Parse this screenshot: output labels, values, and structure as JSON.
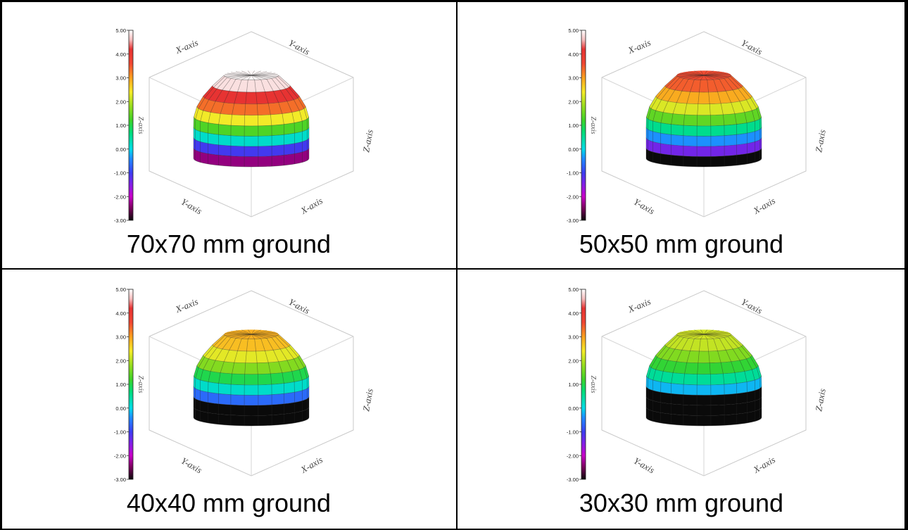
{
  "chart_data": [
    {
      "type": "surface3d",
      "caption": "70x70 mm ground",
      "colorbar": {
        "ticks": [
          "5.00",
          "4.00",
          "3.00",
          "2.00",
          "1.00",
          "0.00",
          "-1.00",
          "-2.00",
          "-3.00"
        ],
        "range": [
          -3,
          5
        ],
        "label": "Z-axis"
      },
      "axes": {
        "x_top": "X-axis",
        "y_top": "Y-axis",
        "z_right": "Z-axis",
        "y_bottom": "Y-axis",
        "x_bottom": "X-axis"
      },
      "dome": {
        "top_value": 5.0,
        "bottom_value": -3.0,
        "dark_bottom_fraction": 0.04
      }
    },
    {
      "type": "surface3d",
      "caption": "50x50 mm ground",
      "colorbar": {
        "ticks": [
          "5.00",
          "4.00",
          "3.00",
          "2.00",
          "1.00",
          "0.00",
          "-1.00",
          "-2.00",
          "-3.00"
        ],
        "range": [
          -3,
          5
        ],
        "label": "Z-axis"
      },
      "axes": {
        "x_top": "X-axis",
        "y_top": "Y-axis",
        "z_right": "Z-axis",
        "y_bottom": "Y-axis",
        "x_bottom": "X-axis"
      },
      "dome": {
        "top_value": 3.6,
        "bottom_value": -3.0,
        "dark_bottom_fraction": 0.08
      }
    },
    {
      "type": "surface3d",
      "caption": "40x40 mm ground",
      "colorbar": {
        "ticks": [
          "5.00",
          "4.00",
          "3.00",
          "2.00",
          "1.00",
          "0.00",
          "-1.00",
          "-2.00",
          "-3.00"
        ],
        "range": [
          -3,
          5
        ],
        "label": "Z-axis"
      },
      "axes": {
        "x_top": "X-axis",
        "y_top": "Y-axis",
        "z_right": "Z-axis",
        "y_bottom": "Y-axis",
        "x_bottom": "X-axis"
      },
      "dome": {
        "top_value": 2.9,
        "bottom_value": -3.0,
        "dark_bottom_fraction": 0.22
      }
    },
    {
      "type": "surface3d",
      "caption": "30x30 mm ground",
      "colorbar": {
        "ticks": [
          "5.00",
          "4.00",
          "3.00",
          "2.00",
          "1.00",
          "0.00",
          "-1.00",
          "-2.00",
          "-3.00"
        ],
        "range": [
          -3,
          5
        ],
        "label": "Z-axis"
      },
      "axes": {
        "x_top": "X-axis",
        "y_top": "Y-axis",
        "z_right": "Z-axis",
        "y_bottom": "Y-axis",
        "x_bottom": "X-axis"
      },
      "dome": {
        "top_value": 2.2,
        "bottom_value": -3.0,
        "dark_bottom_fraction": 0.42
      }
    }
  ]
}
